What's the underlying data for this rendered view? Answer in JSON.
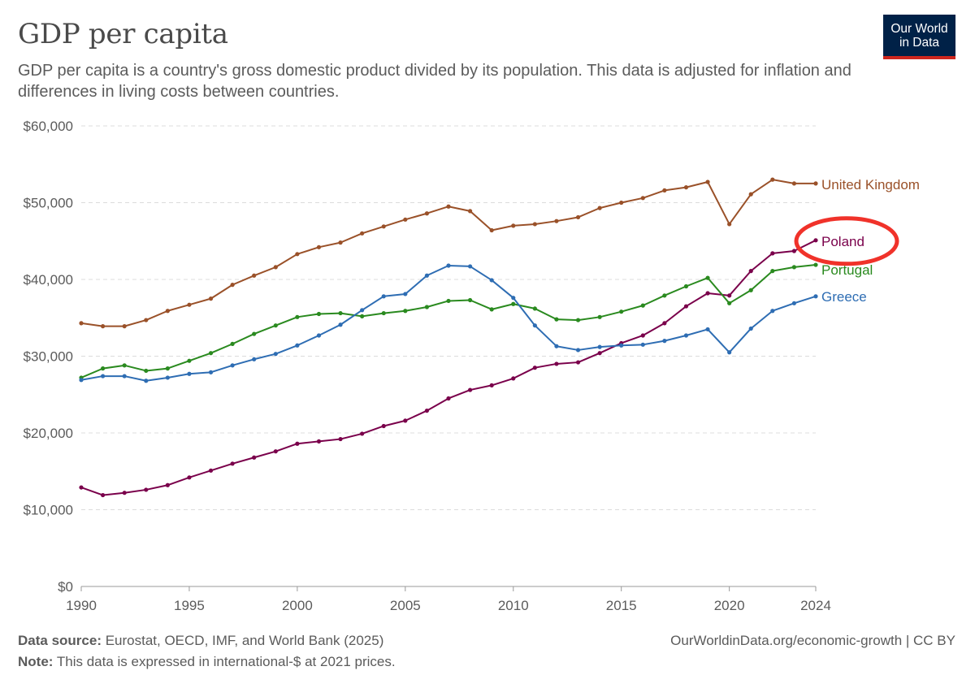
{
  "header": {
    "title": "GDP per capita",
    "subtitle": "GDP per capita is a country's gross domestic product divided by its population. This data is adjusted for inflation and differences in living costs between countries."
  },
  "logo": {
    "line1": "Our World",
    "line2": "in Data"
  },
  "footer": {
    "source_label": "Data source:",
    "source_text": " Eurostat, OECD, IMF, and World Bank (2025)",
    "note_label": "Note:",
    "note_text": " This data is expressed in international-$ at 2021 prices.",
    "link": "OurWorldinData.org/economic-growth",
    "license": " | CC BY"
  },
  "chart_data": {
    "type": "line",
    "title": "GDP per capita",
    "x": [
      1990,
      1991,
      1992,
      1993,
      1994,
      1995,
      1996,
      1997,
      1998,
      1999,
      2000,
      2001,
      2002,
      2003,
      2004,
      2005,
      2006,
      2007,
      2008,
      2009,
      2010,
      2011,
      2012,
      2013,
      2014,
      2015,
      2016,
      2017,
      2018,
      2019,
      2020,
      2021,
      2022,
      2023,
      2024
    ],
    "xticks": [
      "1990",
      "1995",
      "2000",
      "2005",
      "2010",
      "2015",
      "2020",
      "2024"
    ],
    "xlim": [
      1990,
      2024
    ],
    "ylim": [
      0,
      60000
    ],
    "yticks": [
      "$0",
      "$10,000",
      "$20,000",
      "$30,000",
      "$40,000",
      "$50,000",
      "$60,000"
    ],
    "grid": true,
    "legend": "line-end labels",
    "series": [
      {
        "name": "United Kingdom",
        "color": "#9a5129",
        "values": [
          34300,
          33900,
          33900,
          34700,
          35900,
          36700,
          37500,
          39300,
          40500,
          41600,
          43300,
          44200,
          44800,
          46000,
          46900,
          47800,
          48600,
          49500,
          48900,
          46400,
          47000,
          47200,
          47600,
          48100,
          49300,
          50000,
          50600,
          51600,
          52000,
          52700,
          47200,
          51100,
          53000,
          52500,
          52500
        ]
      },
      {
        "name": "Poland",
        "color": "#7a004b",
        "values": [
          12900,
          11900,
          12200,
          12600,
          13200,
          14200,
          15100,
          16000,
          16800,
          17600,
          18600,
          18900,
          19200,
          19900,
          20900,
          21600,
          22900,
          24500,
          25600,
          26200,
          27100,
          28500,
          29000,
          29200,
          30400,
          31700,
          32700,
          34300,
          36500,
          38200,
          37900,
          41100,
          43400,
          43700,
          45100
        ]
      },
      {
        "name": "Portugal",
        "color": "#2a8a1f",
        "values": [
          27200,
          28400,
          28800,
          28100,
          28400,
          29400,
          30400,
          31600,
          32900,
          34000,
          35100,
          35500,
          35600,
          35200,
          35600,
          35900,
          36400,
          37200,
          37300,
          36100,
          36800,
          36200,
          34800,
          34700,
          35100,
          35800,
          36600,
          37900,
          39100,
          40200,
          36900,
          38600,
          41100,
          41600,
          41900
        ]
      },
      {
        "name": "Greece",
        "color": "#2e6db3",
        "values": [
          26900,
          27400,
          27400,
          26800,
          27200,
          27700,
          27900,
          28800,
          29600,
          30300,
          31400,
          32700,
          34100,
          36000,
          37800,
          38100,
          40500,
          41800,
          41700,
          39900,
          37600,
          34000,
          31300,
          30800,
          31200,
          31400,
          31500,
          32000,
          32700,
          33500,
          30500,
          33600,
          35900,
          36900,
          37800
        ]
      }
    ],
    "annotation": {
      "type": "circle",
      "target": "Poland",
      "color": "#f0322a"
    }
  }
}
